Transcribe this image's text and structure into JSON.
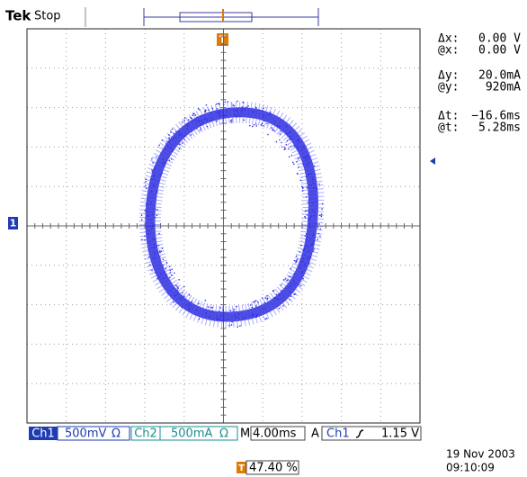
{
  "header": {
    "brand": "Tek",
    "status": "Stop"
  },
  "trigger_marker": "T",
  "channel_marker": "1",
  "readouts": [
    {
      "label": "Δx:",
      "value": "0.00 V"
    },
    {
      "label": "@x:",
      "value": "0.00 V"
    },
    {
      "label": "Δy:",
      "value": "20.0mA"
    },
    {
      "label": "@y:",
      "value": "920mA"
    },
    {
      "label": "Δt:",
      "value": "−16.6ms"
    },
    {
      "label": "@t:",
      "value": "5.28ms"
    }
  ],
  "status_bar": {
    "ch1": "Ch1",
    "ch1_scale": "500mV",
    "ohm1": "Ω",
    "ch2": "Ch2",
    "ch2_scale": "500mA",
    "ohm2": "Ω",
    "time_label": "M",
    "time_scale": "4.00ms",
    "trigger_mode": "A",
    "trigger_source": "Ch1",
    "trigger_level": "1.15 V"
  },
  "footer": {
    "date": "19 Nov 2003",
    "time": "09:10:09",
    "trigger_position": "47.40 %",
    "trigger_icon": "T"
  }
}
